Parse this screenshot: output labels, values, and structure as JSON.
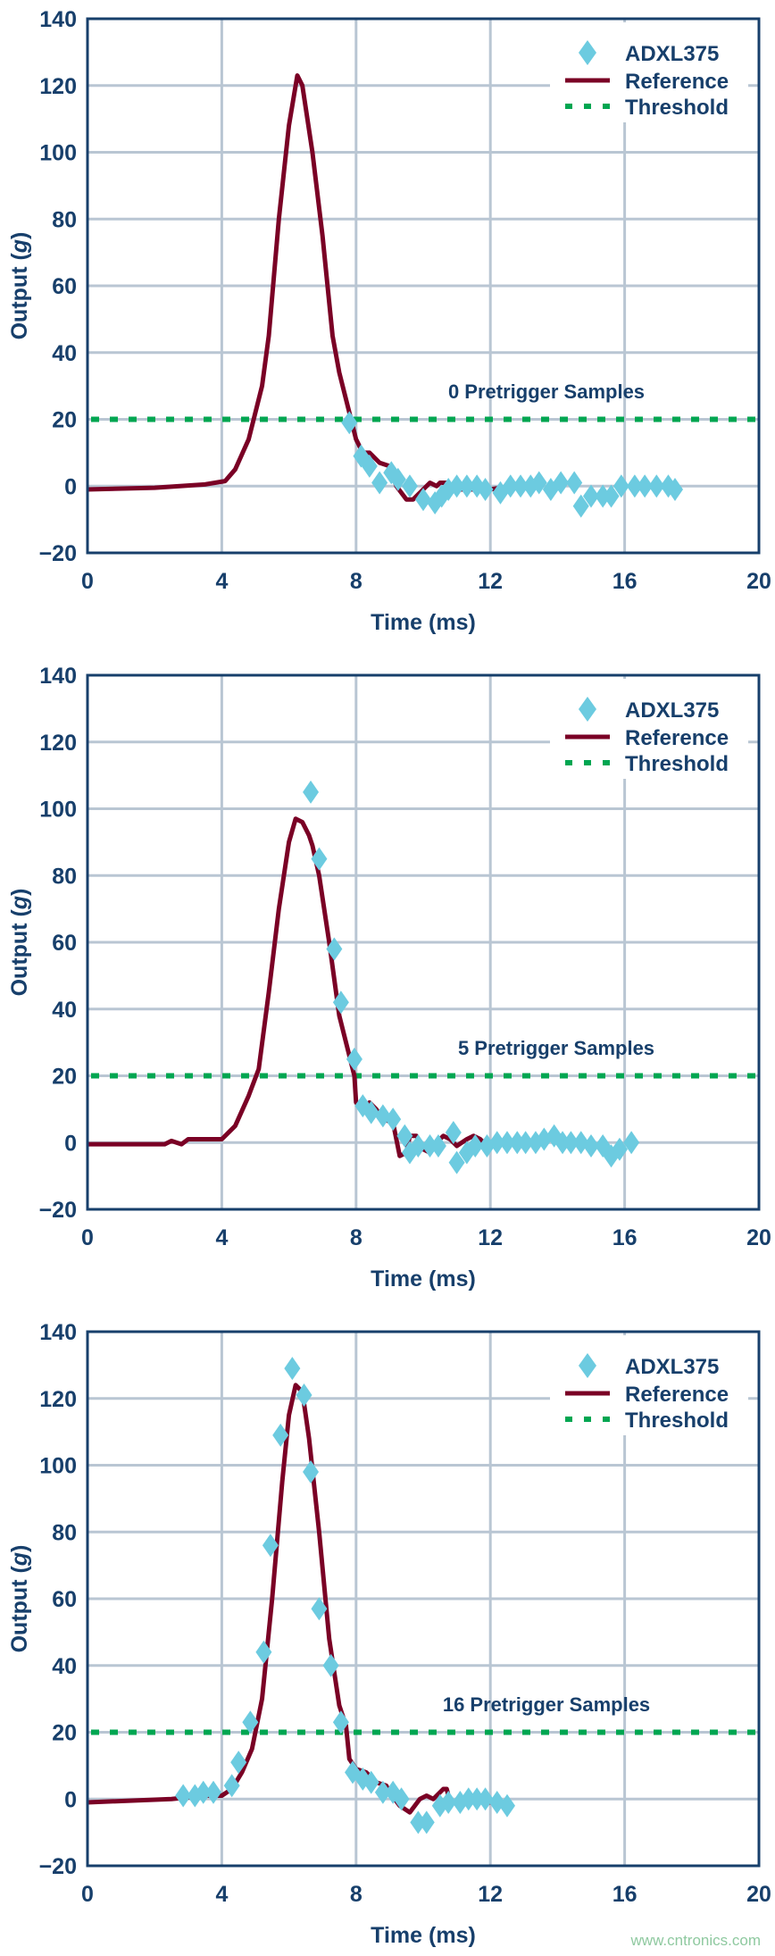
{
  "colors": {
    "axis": "#173f6b",
    "grid": "#b9c6d3",
    "reference": "#7a0025",
    "adxl": "#6ccbe0",
    "threshold": "#00a651",
    "text": "#173f6b"
  },
  "watermark": "www.cntronics.com",
  "chart_data": [
    {
      "type": "line",
      "annotation": "0 Pretrigger Samples",
      "xlabel": "Time (ms)",
      "ylabel": {
        "pre": "Output (",
        "italic": "g",
        "post": ")"
      },
      "xlim": [
        0,
        20
      ],
      "ylim": [
        -20,
        140
      ],
      "xticks": [
        "0",
        "4",
        "8",
        "12",
        "16",
        "20"
      ],
      "yticks": [
        "−20",
        "0",
        "20",
        "40",
        "60",
        "80",
        "100",
        "120",
        "140"
      ],
      "grid": true,
      "legend_position": "top-right",
      "legend": [
        "ADXL375",
        "Reference",
        "Threshold"
      ],
      "threshold": 20,
      "reference": [
        [
          0,
          -1
        ],
        [
          2,
          -0.5
        ],
        [
          3.5,
          0.5
        ],
        [
          4.1,
          1.5
        ],
        [
          4.4,
          5
        ],
        [
          4.8,
          14
        ],
        [
          5.2,
          30
        ],
        [
          5.4,
          45
        ],
        [
          5.7,
          80
        ],
        [
          6.0,
          108
        ],
        [
          6.25,
          123
        ],
        [
          6.4,
          120
        ],
        [
          6.7,
          100
        ],
        [
          7.0,
          75
        ],
        [
          7.3,
          45
        ],
        [
          7.5,
          34
        ],
        [
          7.8,
          22
        ],
        [
          8.0,
          14
        ],
        [
          8.2,
          10
        ],
        [
          8.4,
          10
        ],
        [
          8.7,
          7
        ],
        [
          9.0,
          6
        ],
        [
          9.2,
          0
        ],
        [
          9.5,
          -4
        ],
        [
          9.7,
          -4
        ],
        [
          10.0,
          -1
        ],
        [
          10.2,
          1
        ],
        [
          10.4,
          0
        ],
        [
          10.5,
          1
        ],
        [
          10.7,
          1
        ],
        [
          10.9,
          -1
        ],
        [
          11.2,
          -1
        ],
        [
          11.5,
          -1
        ],
        [
          12.0,
          -1
        ],
        [
          12.6,
          0
        ]
      ],
      "adxl375": [
        [
          7.8,
          19
        ],
        [
          8.15,
          9
        ],
        [
          8.4,
          6
        ],
        [
          8.7,
          1
        ],
        [
          9.05,
          4
        ],
        [
          9.25,
          2
        ],
        [
          9.6,
          0
        ],
        [
          10,
          -4
        ],
        [
          10.35,
          -5
        ],
        [
          10.55,
          -3
        ],
        [
          10.75,
          -1
        ],
        [
          11.0,
          0
        ],
        [
          11.3,
          0
        ],
        [
          11.6,
          0
        ],
        [
          11.85,
          -1
        ],
        [
          12.3,
          -2
        ],
        [
          12.6,
          0
        ],
        [
          12.9,
          0
        ],
        [
          13.2,
          0
        ],
        [
          13.45,
          1
        ],
        [
          13.8,
          -1
        ],
        [
          14.1,
          1
        ],
        [
          14.5,
          1
        ],
        [
          14.7,
          -6
        ],
        [
          15.0,
          -3
        ],
        [
          15.35,
          -3
        ],
        [
          15.6,
          -3
        ],
        [
          15.9,
          0
        ],
        [
          16.3,
          0
        ],
        [
          16.6,
          0
        ],
        [
          16.95,
          0
        ],
        [
          17.3,
          0
        ],
        [
          17.5,
          -1
        ]
      ]
    },
    {
      "type": "line",
      "annotation": "5 Pretrigger Samples",
      "xlabel": "Time (ms)",
      "ylabel": {
        "pre": "Output (",
        "italic": "g",
        "post": ")"
      },
      "xlim": [
        0,
        20
      ],
      "ylim": [
        -20,
        140
      ],
      "xticks": [
        "0",
        "4",
        "8",
        "12",
        "16",
        "20"
      ],
      "yticks": [
        "−20",
        "0",
        "20",
        "40",
        "60",
        "80",
        "100",
        "120",
        "140"
      ],
      "grid": true,
      "legend_position": "top-right",
      "legend": [
        "ADXL375",
        "Reference",
        "Threshold"
      ],
      "threshold": 20,
      "reference": [
        [
          0,
          -0.5
        ],
        [
          2.3,
          -0.5
        ],
        [
          2.5,
          0.5
        ],
        [
          2.8,
          -0.5
        ],
        [
          3.0,
          1
        ],
        [
          3.4,
          1
        ],
        [
          4.0,
          1
        ],
        [
          4.4,
          5
        ],
        [
          4.8,
          14
        ],
        [
          5.1,
          22
        ],
        [
          5.4,
          45
        ],
        [
          5.7,
          70
        ],
        [
          6.0,
          90
        ],
        [
          6.2,
          97
        ],
        [
          6.4,
          96
        ],
        [
          6.6,
          92
        ],
        [
          6.7,
          89
        ],
        [
          6.9,
          80
        ],
        [
          7.2,
          60
        ],
        [
          7.5,
          38
        ],
        [
          7.8,
          26
        ],
        [
          7.95,
          20
        ],
        [
          8.0,
          12
        ],
        [
          8.2,
          10
        ],
        [
          8.4,
          12
        ],
        [
          8.6,
          10
        ],
        [
          8.8,
          7
        ],
        [
          9.1,
          6
        ],
        [
          9.2,
          1
        ],
        [
          9.3,
          -4
        ],
        [
          9.5,
          -3
        ],
        [
          9.6,
          2
        ],
        [
          9.8,
          2
        ],
        [
          10.0,
          -2
        ],
        [
          10.2,
          -3
        ],
        [
          10.4,
          0
        ],
        [
          10.6,
          2
        ],
        [
          10.8,
          1
        ],
        [
          11.0,
          -1
        ],
        [
          11.3,
          1
        ],
        [
          11.5,
          2
        ],
        [
          11.7,
          1
        ],
        [
          11.8,
          0
        ]
      ],
      "adxl375": [
        [
          6.65,
          105
        ],
        [
          6.9,
          85
        ],
        [
          7.35,
          58
        ],
        [
          7.55,
          42
        ],
        [
          7.95,
          25
        ],
        [
          8.2,
          11
        ],
        [
          8.45,
          9
        ],
        [
          8.8,
          8
        ],
        [
          9.1,
          7
        ],
        [
          9.45,
          2
        ],
        [
          9.6,
          -3
        ],
        [
          9.85,
          -1
        ],
        [
          10.2,
          -1
        ],
        [
          10.45,
          -1
        ],
        [
          10.9,
          3
        ],
        [
          11.0,
          -6
        ],
        [
          11.3,
          -3
        ],
        [
          11.55,
          -1
        ],
        [
          11.9,
          -1
        ],
        [
          12.2,
          0
        ],
        [
          12.5,
          0
        ],
        [
          12.8,
          0
        ],
        [
          13.05,
          0
        ],
        [
          13.35,
          0
        ],
        [
          13.6,
          1
        ],
        [
          13.9,
          2
        ],
        [
          14.15,
          0
        ],
        [
          14.4,
          0
        ],
        [
          14.7,
          0
        ],
        [
          15.0,
          -1
        ],
        [
          15.35,
          -1
        ],
        [
          15.6,
          -4
        ],
        [
          15.85,
          -2
        ],
        [
          16.2,
          0
        ]
      ]
    },
    {
      "type": "line",
      "annotation": "16 Pretrigger Samples",
      "xlabel": "Time (ms)",
      "ylabel": {
        "pre": "Output (",
        "italic": "g",
        "post": ")"
      },
      "xlim": [
        0,
        20
      ],
      "ylim": [
        -20,
        140
      ],
      "xticks": [
        "0",
        "4",
        "8",
        "12",
        "16",
        "20"
      ],
      "yticks": [
        "−20",
        "0",
        "20",
        "40",
        "60",
        "80",
        "100",
        "120",
        "140"
      ],
      "grid": true,
      "legend_position": "top-right",
      "legend": [
        "ADXL375",
        "Reference",
        "Threshold"
      ],
      "threshold": 20,
      "reference": [
        [
          0,
          -1
        ],
        [
          2.5,
          0
        ],
        [
          3.5,
          1
        ],
        [
          4.0,
          1
        ],
        [
          4.3,
          3
        ],
        [
          4.6,
          8
        ],
        [
          4.9,
          15
        ],
        [
          5.2,
          30
        ],
        [
          5.5,
          60
        ],
        [
          5.8,
          95
        ],
        [
          6.0,
          115
        ],
        [
          6.2,
          124
        ],
        [
          6.4,
          122
        ],
        [
          6.6,
          108
        ],
        [
          6.9,
          80
        ],
        [
          7.2,
          48
        ],
        [
          7.5,
          28
        ],
        [
          7.7,
          22
        ],
        [
          7.8,
          12
        ],
        [
          8.0,
          9
        ],
        [
          8.3,
          8
        ],
        [
          8.6,
          5
        ],
        [
          8.9,
          4
        ],
        [
          9.0,
          2
        ],
        [
          9.3,
          -2
        ],
        [
          9.6,
          -4
        ],
        [
          9.9,
          0
        ],
        [
          10.1,
          1
        ],
        [
          10.3,
          0
        ],
        [
          10.6,
          3
        ],
        [
          10.7,
          3
        ],
        [
          10.8,
          -1
        ],
        [
          11.2,
          -1
        ],
        [
          12.0,
          -1
        ],
        [
          12.4,
          -1
        ]
      ],
      "adxl375": [
        [
          2.85,
          1
        ],
        [
          3.2,
          1
        ],
        [
          3.45,
          2
        ],
        [
          3.75,
          2
        ],
        [
          4.3,
          4
        ],
        [
          4.5,
          11
        ],
        [
          4.85,
          23
        ],
        [
          5.25,
          44
        ],
        [
          5.45,
          76
        ],
        [
          5.75,
          109
        ],
        [
          6.1,
          129
        ],
        [
          6.45,
          121
        ],
        [
          6.65,
          98
        ],
        [
          6.9,
          57
        ],
        [
          7.25,
          40
        ],
        [
          7.55,
          23
        ],
        [
          7.9,
          8
        ],
        [
          8.2,
          6
        ],
        [
          8.45,
          5
        ],
        [
          8.8,
          2
        ],
        [
          9.1,
          2
        ],
        [
          9.35,
          0
        ],
        [
          9.85,
          -7
        ],
        [
          10.1,
          -7
        ],
        [
          10.5,
          -2
        ],
        [
          10.75,
          -1
        ],
        [
          11.1,
          -1
        ],
        [
          11.35,
          0
        ],
        [
          11.6,
          0
        ],
        [
          11.85,
          0
        ],
        [
          12.2,
          -1
        ],
        [
          12.5,
          -2
        ]
      ]
    }
  ]
}
